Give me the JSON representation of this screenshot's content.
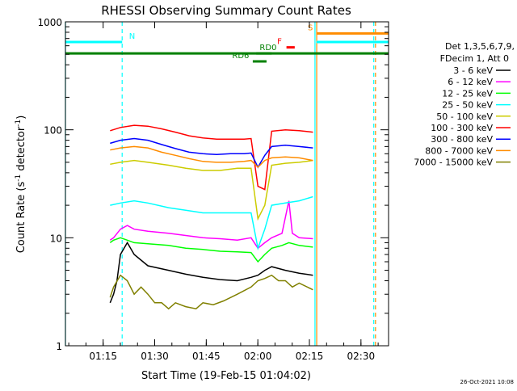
{
  "chart_data": {
    "type": "line",
    "title": "RHESSI Observing Summary Count Rates",
    "xlabel": "Start Time (19-Feb-15 01:04:02)",
    "ylabel_main": "Count Rate (s",
    "ylabel_sup1": "-1",
    "ylabel_mid": " detector",
    "ylabel_sup2": "-1",
    "ylabel_end": ")",
    "yscale": "log",
    "ylim": [
      1,
      1000
    ],
    "xlim_minutes": [
      0,
      94
    ],
    "x_tick_labels": [
      "01:15",
      "01:30",
      "01:45",
      "02:00",
      "02:15",
      "02:30"
    ],
    "x_tick_minutes": [
      10.97,
      25.97,
      40.97,
      55.97,
      70.97,
      85.97
    ],
    "y_tick_labels": [
      "1",
      "10",
      "100",
      "1000"
    ],
    "y_tick_values": [
      1,
      10,
      100,
      1000
    ],
    "legend": {
      "header1": "Det 1,3,5,6,7,9,",
      "header2": "FDecim 1, Att 0"
    },
    "series": [
      {
        "name": "3 - 6 keV",
        "color": "#000000",
        "points": [
          [
            13,
            2.5
          ],
          [
            14,
            3
          ],
          [
            15,
            4
          ],
          [
            16,
            7
          ],
          [
            18,
            9
          ],
          [
            20,
            7
          ],
          [
            24,
            5.5
          ],
          [
            30,
            5
          ],
          [
            35,
            4.6
          ],
          [
            40,
            4.3
          ],
          [
            45,
            4.1
          ],
          [
            50,
            4
          ],
          [
            54,
            4.3
          ],
          [
            56,
            4.5
          ],
          [
            58,
            5
          ],
          [
            60,
            5.4
          ],
          [
            64,
            5
          ],
          [
            68,
            4.7
          ],
          [
            72,
            4.5
          ]
        ]
      },
      {
        "name": "6 - 12 keV",
        "color": "#ff00ff",
        "points": [
          [
            13,
            9.5
          ],
          [
            14,
            10
          ],
          [
            16,
            12
          ],
          [
            18,
            13
          ],
          [
            20,
            12
          ],
          [
            24,
            11.5
          ],
          [
            30,
            11
          ],
          [
            35,
            10.5
          ],
          [
            40,
            10
          ],
          [
            45,
            9.8
          ],
          [
            50,
            9.5
          ],
          [
            54,
            10
          ],
          [
            56,
            8
          ],
          [
            58,
            9
          ],
          [
            60,
            10
          ],
          [
            63,
            11
          ],
          [
            65,
            22
          ],
          [
            66,
            11
          ],
          [
            68,
            10
          ],
          [
            72,
            9.8
          ]
        ]
      },
      {
        "name": "12 - 25 keV",
        "color": "#00ff00",
        "points": [
          [
            13,
            9
          ],
          [
            14,
            9.5
          ],
          [
            16,
            10
          ],
          [
            18,
            9.5
          ],
          [
            20,
            9
          ],
          [
            24,
            8.8
          ],
          [
            30,
            8.5
          ],
          [
            35,
            8
          ],
          [
            40,
            7.8
          ],
          [
            45,
            7.5
          ],
          [
            50,
            7.4
          ],
          [
            54,
            7.3
          ],
          [
            56,
            6
          ],
          [
            58,
            7
          ],
          [
            60,
            8
          ],
          [
            63,
            8.5
          ],
          [
            65,
            9
          ],
          [
            68,
            8.5
          ],
          [
            72,
            8.2
          ]
        ]
      },
      {
        "name": "25 - 50 keV",
        "color": "#00ffff",
        "points": [
          [
            13,
            20
          ],
          [
            16,
            21
          ],
          [
            20,
            22
          ],
          [
            24,
            21
          ],
          [
            30,
            19
          ],
          [
            35,
            18
          ],
          [
            40,
            17
          ],
          [
            45,
            17
          ],
          [
            50,
            17
          ],
          [
            54,
            17
          ],
          [
            56,
            8
          ],
          [
            58,
            12
          ],
          [
            60,
            20
          ],
          [
            64,
            21
          ],
          [
            68,
            22
          ],
          [
            72,
            24
          ]
        ]
      },
      {
        "name": "50 - 100 keV",
        "color": "#cccc00",
        "points": [
          [
            13,
            48
          ],
          [
            16,
            50
          ],
          [
            20,
            52
          ],
          [
            24,
            50
          ],
          [
            30,
            47
          ],
          [
            35,
            44
          ],
          [
            40,
            42
          ],
          [
            45,
            42
          ],
          [
            50,
            44
          ],
          [
            54,
            44
          ],
          [
            56,
            15
          ],
          [
            58,
            20
          ],
          [
            60,
            47
          ],
          [
            64,
            49
          ],
          [
            68,
            50
          ],
          [
            72,
            52
          ]
        ]
      },
      {
        "name": "100 - 300 keV",
        "color": "#ff0000",
        "points": [
          [
            13,
            98
          ],
          [
            16,
            105
          ],
          [
            20,
            110
          ],
          [
            24,
            108
          ],
          [
            28,
            102
          ],
          [
            32,
            95
          ],
          [
            36,
            88
          ],
          [
            40,
            84
          ],
          [
            44,
            82
          ],
          [
            48,
            82
          ],
          [
            52,
            82
          ],
          [
            54,
            83
          ],
          [
            56,
            30
          ],
          [
            58,
            28
          ],
          [
            60,
            97
          ],
          [
            64,
            100
          ],
          [
            68,
            98
          ],
          [
            72,
            95
          ]
        ]
      },
      {
        "name": "300 - 800 keV",
        "color": "#0000ff",
        "points": [
          [
            13,
            75
          ],
          [
            16,
            80
          ],
          [
            20,
            83
          ],
          [
            24,
            80
          ],
          [
            28,
            73
          ],
          [
            32,
            67
          ],
          [
            36,
            62
          ],
          [
            40,
            60
          ],
          [
            44,
            59
          ],
          [
            48,
            60
          ],
          [
            52,
            60
          ],
          [
            54,
            61
          ],
          [
            56,
            45
          ],
          [
            58,
            58
          ],
          [
            60,
            70
          ],
          [
            64,
            72
          ],
          [
            68,
            70
          ],
          [
            72,
            68
          ]
        ]
      },
      {
        "name": "800 - 7000 keV",
        "color": "#ff8c00",
        "points": [
          [
            13,
            65
          ],
          [
            16,
            68
          ],
          [
            20,
            70
          ],
          [
            24,
            68
          ],
          [
            28,
            62
          ],
          [
            32,
            58
          ],
          [
            36,
            54
          ],
          [
            40,
            51
          ],
          [
            44,
            50
          ],
          [
            48,
            50
          ],
          [
            52,
            51
          ],
          [
            54,
            52
          ],
          [
            56,
            45
          ],
          [
            58,
            52
          ],
          [
            60,
            55
          ],
          [
            64,
            56
          ],
          [
            68,
            55
          ],
          [
            72,
            52
          ]
        ]
      },
      {
        "name": "7000 - 15000 keV",
        "color": "#808000",
        "points": [
          [
            13,
            2.8
          ],
          [
            14,
            3.5
          ],
          [
            16,
            4.5
          ],
          [
            18,
            4
          ],
          [
            20,
            3
          ],
          [
            22,
            3.5
          ],
          [
            24,
            3
          ],
          [
            26,
            2.5
          ],
          [
            28,
            2.5
          ],
          [
            30,
            2.2
          ],
          [
            32,
            2.5
          ],
          [
            35,
            2.3
          ],
          [
            38,
            2.2
          ],
          [
            40,
            2.5
          ],
          [
            43,
            2.4
          ],
          [
            46,
            2.6
          ],
          [
            50,
            3
          ],
          [
            54,
            3.5
          ],
          [
            56,
            4
          ],
          [
            58,
            4.2
          ],
          [
            60,
            4.5
          ],
          [
            62,
            4
          ],
          [
            64,
            4
          ],
          [
            66,
            3.5
          ],
          [
            68,
            3.8
          ],
          [
            72,
            3.3
          ]
        ]
      }
    ],
    "flag_lines": [
      {
        "name": "N",
        "color": "#00ffff",
        "y": 650,
        "x0": 0,
        "x1": 16.5,
        "label": "N",
        "label_x": 18.5
      },
      {
        "name": "S",
        "color": "#ff8c00",
        "y": 780,
        "x0": 73,
        "x1": 94,
        "label": "S",
        "label_x": 70.5
      },
      {
        "name": "S2",
        "color": "#00ffff",
        "y": 650,
        "x0": 73,
        "x1": 94,
        "label": "",
        "label_x": 0
      },
      {
        "name": "Eclipse",
        "color": "#008000",
        "y": 510,
        "x0": 0,
        "x1": 94,
        "label": "",
        "label_x": 0
      },
      {
        "name": "RD0",
        "color": "#008000",
        "y": 510,
        "x0": 55.5,
        "x1": 60,
        "label": "RD0",
        "label_x": 56.5
      },
      {
        "name": "RD6",
        "color": "#008000",
        "y": 430,
        "x0": 54.5,
        "x1": 58.5,
        "label": "RD6",
        "label_x": 48.5
      },
      {
        "name": "F",
        "color": "#ff0000",
        "y": 580,
        "x0": 64.3,
        "x1": 66.7,
        "label": "F",
        "label_x": 61.6
      }
    ],
    "vertical_lines": [
      {
        "name": "night-start",
        "color": "#00ffff",
        "x": 0,
        "dashed": false
      },
      {
        "name": "saa-end",
        "color": "#00ffff",
        "x": 16.5,
        "dashed": true
      },
      {
        "name": "day-start",
        "color": "#00ffff",
        "x": 72.6,
        "dashed": false
      },
      {
        "name": "orbit-end",
        "color": "#ff8c00",
        "x": 73.1,
        "dashed": false
      },
      {
        "name": "saa-start",
        "color": "#00ffff",
        "x": 89.7,
        "dashed": true
      },
      {
        "name": "saa-start-orange",
        "color": "#ff8c00",
        "x": 90.2,
        "dashed": true
      }
    ],
    "timestamp": "26-Oct-2021 10:08"
  }
}
